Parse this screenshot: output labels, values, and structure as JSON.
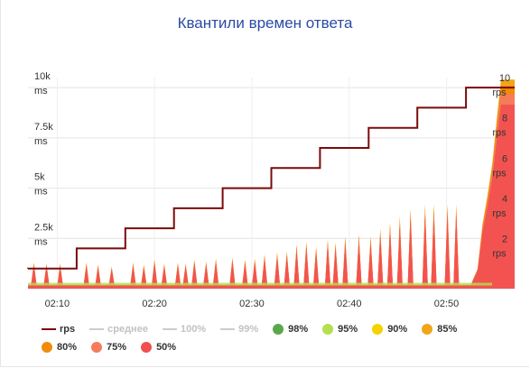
{
  "chart_data": {
    "type": "area",
    "title": "Квантили времен ответа",
    "x_ticks": [
      "02:10",
      "02:20",
      "02:30",
      "02:40",
      "02:50"
    ],
    "x_tick_minutes": [
      10,
      20,
      30,
      40,
      50
    ],
    "x_range_minutes": [
      7.0,
      57.0
    ],
    "y_left": {
      "ticks": [
        {
          "value": 2500,
          "label": "2.5k",
          "unit": "ms"
        },
        {
          "value": 5000,
          "label": "5k",
          "unit": "ms"
        },
        {
          "value": 7500,
          "label": "7.5k",
          "unit": "ms"
        },
        {
          "value": 10000,
          "label": "10k",
          "unit": "ms"
        }
      ],
      "range": [
        0,
        10500
      ]
    },
    "y_right": {
      "ticks": [
        {
          "value": 2,
          "label": "2",
          "unit": "rps"
        },
        {
          "value": 4,
          "label": "4",
          "unit": "rps"
        },
        {
          "value": 6,
          "label": "6",
          "unit": "rps"
        },
        {
          "value": 8,
          "label": "8",
          "unit": "rps"
        },
        {
          "value": 10,
          "label": "10",
          "unit": "rps"
        }
      ],
      "range": [
        0,
        10.5
      ]
    },
    "grid": true,
    "rps_series": {
      "name": "rps",
      "color": "#7a0b0b",
      "steps": [
        {
          "from": 7.0,
          "to": 12.0,
          "value": 1
        },
        {
          "from": 12.0,
          "to": 17.0,
          "value": 2
        },
        {
          "from": 17.0,
          "to": 22.0,
          "value": 3
        },
        {
          "from": 22.0,
          "to": 27.0,
          "value": 4
        },
        {
          "from": 27.0,
          "to": 32.0,
          "value": 5
        },
        {
          "from": 32.0,
          "to": 37.0,
          "value": 6
        },
        {
          "from": 37.0,
          "to": 42.0,
          "value": 7
        },
        {
          "from": 42.0,
          "to": 47.0,
          "value": 8
        },
        {
          "from": 47.0,
          "to": 52.0,
          "value": 9
        },
        {
          "from": 52.0,
          "to": 57.0,
          "value": 10
        }
      ]
    },
    "quantile_spikes": {
      "baseline_ms": 200,
      "series_shown": [
        "50%"
      ],
      "spikes": [
        {
          "t": 7.6,
          "ms": 1300
        },
        {
          "t": 8.9,
          "ms": 1250
        },
        {
          "t": 10.3,
          "ms": 1250
        },
        {
          "t": 13.0,
          "ms": 1300
        },
        {
          "t": 14.2,
          "ms": 1200
        },
        {
          "t": 15.6,
          "ms": 1100
        },
        {
          "t": 17.8,
          "ms": 1300
        },
        {
          "t": 18.9,
          "ms": 1200
        },
        {
          "t": 20.0,
          "ms": 1450
        },
        {
          "t": 21.0,
          "ms": 1250
        },
        {
          "t": 22.4,
          "ms": 1300
        },
        {
          "t": 23.2,
          "ms": 1250
        },
        {
          "t": 24.1,
          "ms": 1450
        },
        {
          "t": 25.3,
          "ms": 1350
        },
        {
          "t": 26.3,
          "ms": 1500
        },
        {
          "t": 28.0,
          "ms": 1550
        },
        {
          "t": 29.3,
          "ms": 1450
        },
        {
          "t": 30.3,
          "ms": 1500
        },
        {
          "t": 31.3,
          "ms": 1700
        },
        {
          "t": 32.6,
          "ms": 1800
        },
        {
          "t": 33.6,
          "ms": 1850
        },
        {
          "t": 34.6,
          "ms": 2200
        },
        {
          "t": 35.6,
          "ms": 2350
        },
        {
          "t": 36.6,
          "ms": 2100
        },
        {
          "t": 37.8,
          "ms": 2450
        },
        {
          "t": 38.6,
          "ms": 2300
        },
        {
          "t": 39.6,
          "ms": 2600
        },
        {
          "t": 41.0,
          "ms": 2700
        },
        {
          "t": 42.2,
          "ms": 2600
        },
        {
          "t": 43.2,
          "ms": 3000
        },
        {
          "t": 44.2,
          "ms": 3300
        },
        {
          "t": 45.2,
          "ms": 3600
        },
        {
          "t": 46.3,
          "ms": 4000
        },
        {
          "t": 47.8,
          "ms": 4200
        },
        {
          "t": 48.7,
          "ms": 4200
        },
        {
          "t": 50.1,
          "ms": 4200
        },
        {
          "t": 51.0,
          "ms": 4200
        }
      ],
      "final_ramp": [
        {
          "t": 52.5,
          "ms": 200
        },
        {
          "t": 53.2,
          "ms": 1000
        },
        {
          "t": 53.7,
          "ms": 3200
        },
        {
          "t": 54.2,
          "ms": 4600
        },
        {
          "t": 54.7,
          "ms": 6200
        },
        {
          "t": 55.2,
          "ms": 8600
        },
        {
          "t": 55.6,
          "ms": 10400
        },
        {
          "t": 57.0,
          "ms": 10400
        }
      ]
    }
  },
  "legend": [
    [
      {
        "label": "rps",
        "kind": "line",
        "color": "#7a0b0b",
        "enabled": true
      },
      {
        "label": "среднее",
        "kind": "line",
        "color": "#cccccc",
        "enabled": false
      },
      {
        "label": "100%",
        "kind": "line",
        "color": "#cccccc",
        "enabled": false
      },
      {
        "label": "99%",
        "kind": "line",
        "color": "#cccccc",
        "enabled": false
      },
      {
        "label": "98%",
        "kind": "dot",
        "color": "#5aa84a",
        "enabled": true
      },
      {
        "label": "95%",
        "kind": "dot",
        "color": "#b3e04d",
        "enabled": true
      },
      {
        "label": "90%",
        "kind": "dot",
        "color": "#f5d200",
        "enabled": true
      },
      {
        "label": "85%",
        "kind": "dot",
        "color": "#f2a51a",
        "enabled": true
      }
    ],
    [
      {
        "label": "80%",
        "kind": "dot",
        "color": "#f08c0a",
        "enabled": true
      },
      {
        "label": "75%",
        "kind": "dot",
        "color": "#f47c5a",
        "enabled": true
      },
      {
        "label": "50%",
        "kind": "dot",
        "color": "#f24f4f",
        "enabled": true
      }
    ]
  ]
}
